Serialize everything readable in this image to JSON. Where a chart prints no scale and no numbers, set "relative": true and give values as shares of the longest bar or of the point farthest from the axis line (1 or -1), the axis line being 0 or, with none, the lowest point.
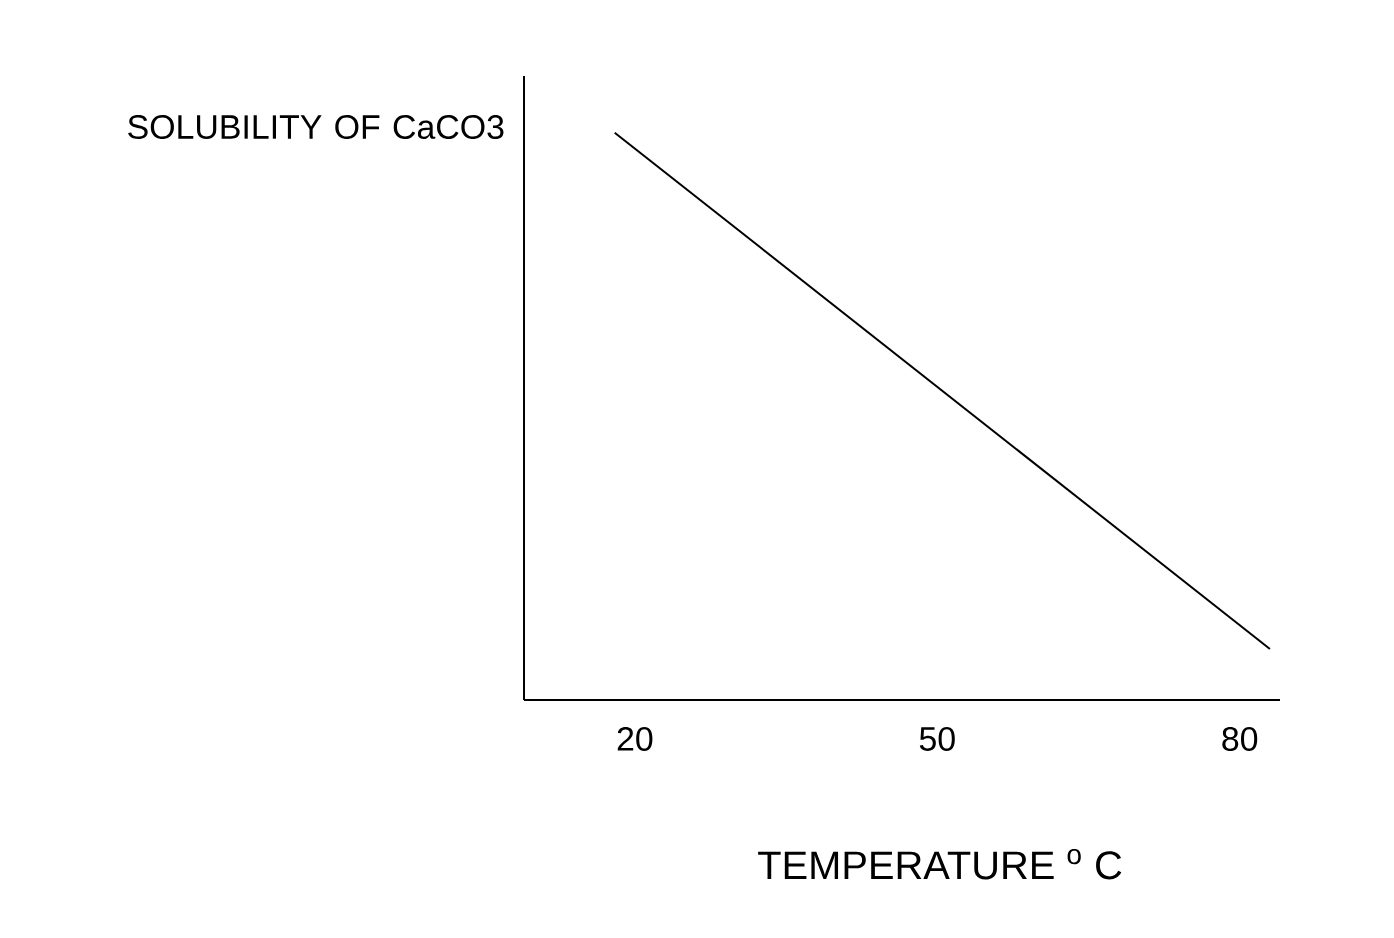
{
  "chart_data": {
    "type": "line",
    "relative": true,
    "xlabel": "TEMPERATURE $^{o}$ C",
    "ylabel": "SOLUBILITY OF CaCO3",
    "xlim": [
      9,
      84
    ],
    "xticks": [
      20,
      50,
      80
    ],
    "series": [
      {
        "color": "#000000",
        "x": [
          18,
          83
        ],
        "values": [
          1,
          0.09
        ]
      }
    ]
  }
}
